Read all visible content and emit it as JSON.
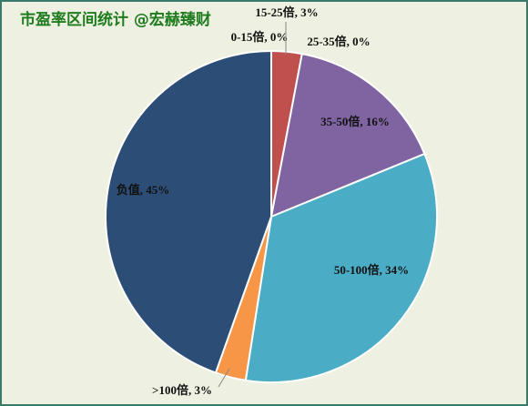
{
  "chart_data": {
    "type": "pie",
    "title": "市盈率区间统计 @宏赫臻财",
    "labels": [
      "0-15倍, 0%",
      "15-25倍, 3%",
      "25-35倍, 0%",
      "35-50倍, 16%",
      "50-100倍, 34%",
      ">100倍, 3%",
      "负值, 45%"
    ],
    "values": [
      0,
      3,
      0,
      16,
      34,
      3,
      45
    ],
    "colors": [
      "#4f81bd",
      "#c0504d",
      "#9bbb59",
      "#8064a2",
      "#4bacc6",
      "#f79646",
      "#2c4d75"
    ]
  }
}
